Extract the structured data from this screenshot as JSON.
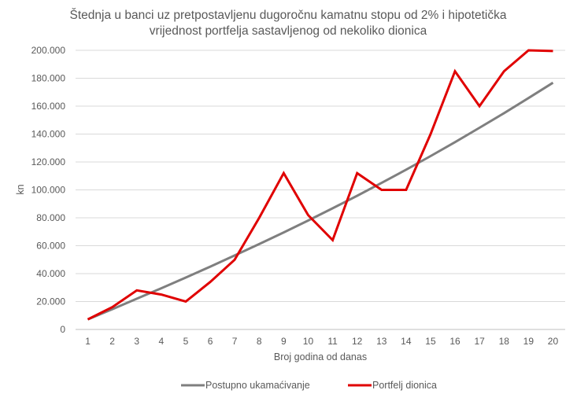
{
  "chart_data": {
    "type": "line",
    "title_lines": [
      "Štednja u banci uz pretpostavljenu  dugoročnu kamatnu stopu od 2% i hipotetička",
      "vrijednost portfelja sastavljenog  od nekoliko dionica"
    ],
    "xlabel": "Broj godina od danas",
    "ylabel": "kn",
    "categories": [
      "1",
      "2",
      "3",
      "4",
      "5",
      "6",
      "7",
      "8",
      "9",
      "10",
      "11",
      "12",
      "13",
      "14",
      "15",
      "16",
      "17",
      "18",
      "19",
      "20"
    ],
    "ylim": [
      0,
      200000
    ],
    "y_ticks": [
      0,
      20000,
      40000,
      60000,
      80000,
      100000,
      120000,
      140000,
      160000,
      180000,
      200000
    ],
    "y_tick_labels": [
      "0",
      "20.000",
      "40.000",
      "60.000",
      "80.000",
      "100.000",
      "120.000",
      "140.000",
      "160.000",
      "180.000",
      "200.000"
    ],
    "grid": true,
    "legend_position": "bottom",
    "series": [
      {
        "name": "Postupno ukamaćivanje",
        "color": "#7f7f7f",
        "values": [
          7200,
          14500,
          22000,
          29500,
          37200,
          45000,
          53000,
          61200,
          69500,
          78000,
          86800,
          95800,
          105000,
          114500,
          124200,
          134200,
          144500,
          155000,
          165800,
          176800
        ]
      },
      {
        "name": "Portfelj dionica",
        "color": "#e00000",
        "values": [
          7200,
          16000,
          28000,
          25000,
          20000,
          34000,
          50000,
          80000,
          112000,
          82000,
          64000,
          112000,
          100000,
          100000,
          140000,
          185000,
          160000,
          185000,
          200000,
          199500
        ]
      }
    ]
  }
}
